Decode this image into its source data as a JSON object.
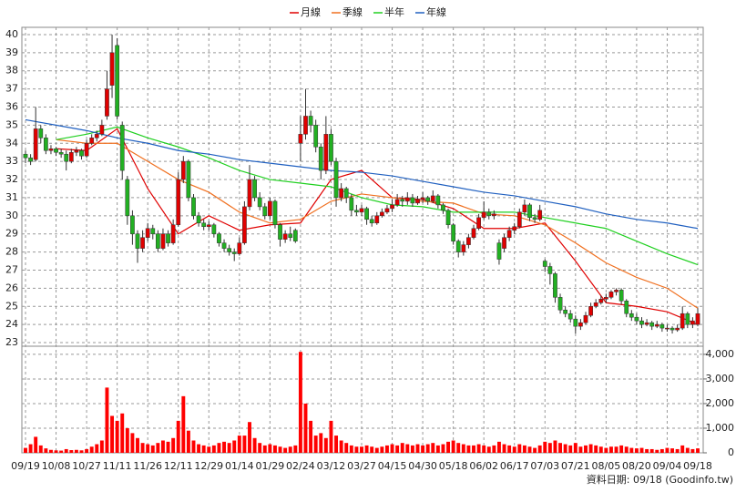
{
  "chart_data": {
    "type": "candlestick",
    "categories": [
      "09/19",
      null,
      null,
      null,
      null,
      null,
      "10/08",
      null,
      null,
      null,
      null,
      null,
      "10/27",
      null,
      null,
      null,
      null,
      null,
      "11/11",
      null,
      null,
      null,
      null,
      null,
      "11/26",
      null,
      null,
      null,
      null,
      null,
      "12/11",
      null,
      null,
      null,
      null,
      null,
      "12/29",
      null,
      null,
      null,
      null,
      null,
      "01/14",
      null,
      null,
      null,
      null,
      null,
      "01/29",
      null,
      null,
      null,
      null,
      null,
      "02/24",
      null,
      null,
      null,
      null,
      null,
      "03/12",
      null,
      null,
      null,
      null,
      null,
      "03/27",
      null,
      null,
      null,
      null,
      null,
      "04/15",
      null,
      null,
      null,
      null,
      null,
      "04/30",
      null,
      null,
      null,
      null,
      null,
      "05/18",
      null,
      null,
      null,
      null,
      null,
      "06/02",
      null,
      null,
      null,
      null,
      null,
      "06/17",
      null,
      null,
      null,
      null,
      null,
      "07/03",
      null,
      null,
      null,
      null,
      null,
      "07/21",
      null,
      null,
      null,
      null,
      null,
      "08/05",
      null,
      null,
      null,
      null,
      null,
      "08/20",
      null,
      null,
      null,
      null,
      null,
      "09/04",
      null,
      null,
      null,
      null,
      null,
      "09/18"
    ],
    "ohlc": [
      [
        33.4,
        33.6,
        32.9,
        33.2
      ],
      [
        33.2,
        33.4,
        32.8,
        33.0
      ],
      [
        33.1,
        36.0,
        33.0,
        34.8
      ],
      [
        34.8,
        35.0,
        34.0,
        34.3
      ],
      [
        34.3,
        34.5,
        33.4,
        33.6
      ],
      [
        33.6,
        33.9,
        33.4,
        33.7
      ],
      [
        33.7,
        33.8,
        33.3,
        33.5
      ],
      [
        33.5,
        33.7,
        33.2,
        33.4
      ],
      [
        33.4,
        33.6,
        32.5,
        33.0
      ],
      [
        33.0,
        33.7,
        32.9,
        33.5
      ],
      [
        33.5,
        33.8,
        33.3,
        33.6
      ],
      [
        33.6,
        33.7,
        33.1,
        33.3
      ],
      [
        33.3,
        34.2,
        33.2,
        34.0
      ],
      [
        34.0,
        34.5,
        33.9,
        34.3
      ],
      [
        34.3,
        34.7,
        34.1,
        34.5
      ],
      [
        34.5,
        35.3,
        34.4,
        35.0
      ],
      [
        35.5,
        38.0,
        35.3,
        37.0
      ],
      [
        37.2,
        40.0,
        36.5,
        39.0
      ],
      [
        39.4,
        39.8,
        35.3,
        35.5
      ],
      [
        35.0,
        35.2,
        32.0,
        32.5
      ],
      [
        32.0,
        32.2,
        29.5,
        30.0
      ],
      [
        30.0,
        30.3,
        28.4,
        29.0
      ],
      [
        29.0,
        29.2,
        27.4,
        28.2
      ],
      [
        28.2,
        29.2,
        28.0,
        28.8
      ],
      [
        28.8,
        29.6,
        28.6,
        29.3
      ],
      [
        29.3,
        29.5,
        28.7,
        29.0
      ],
      [
        29.0,
        29.2,
        28.0,
        28.2
      ],
      [
        28.2,
        29.3,
        28.1,
        29.0
      ],
      [
        29.0,
        29.2,
        28.3,
        28.5
      ],
      [
        28.5,
        29.8,
        28.4,
        29.5
      ],
      [
        29.5,
        32.4,
        29.4,
        32.0
      ],
      [
        32.0,
        33.3,
        31.8,
        33.0
      ],
      [
        33.0,
        33.1,
        30.8,
        31.0
      ],
      [
        31.0,
        31.2,
        29.8,
        30.0
      ],
      [
        30.0,
        30.2,
        29.4,
        29.6
      ],
      [
        29.6,
        29.8,
        29.2,
        29.4
      ],
      [
        29.4,
        29.7,
        29.2,
        29.5
      ],
      [
        29.5,
        29.6,
        28.8,
        29.0
      ],
      [
        29.0,
        29.1,
        28.3,
        28.5
      ],
      [
        28.5,
        28.7,
        28.0,
        28.2
      ],
      [
        28.2,
        28.4,
        27.8,
        28.0
      ],
      [
        28.0,
        28.2,
        27.5,
        27.9
      ],
      [
        27.9,
        28.8,
        27.8,
        28.5
      ],
      [
        28.5,
        30.8,
        28.4,
        30.5
      ],
      [
        30.5,
        32.8,
        30.3,
        32.0
      ],
      [
        32.0,
        32.2,
        30.8,
        31.0
      ],
      [
        31.0,
        31.3,
        30.3,
        30.5
      ],
      [
        30.5,
        30.7,
        29.8,
        30.0
      ],
      [
        30.0,
        31.0,
        29.8,
        30.8
      ],
      [
        30.8,
        30.9,
        29.3,
        29.5
      ],
      [
        29.5,
        29.6,
        28.3,
        28.7
      ],
      [
        28.7,
        29.2,
        28.5,
        29.0
      ],
      [
        29.0,
        29.4,
        28.6,
        28.8
      ],
      [
        29.2,
        29.3,
        28.5,
        28.6
      ],
      [
        34.0,
        35.5,
        33.0,
        34.5
      ],
      [
        34.5,
        37.0,
        34.2,
        35.5
      ],
      [
        35.5,
        35.8,
        34.6,
        35.0
      ],
      [
        35.0,
        35.3,
        33.5,
        33.8
      ],
      [
        33.8,
        34.0,
        32.0,
        32.5
      ],
      [
        32.5,
        35.5,
        32.3,
        34.5
      ],
      [
        34.5,
        34.8,
        32.8,
        33.0
      ],
      [
        33.0,
        33.2,
        30.5,
        31.0
      ],
      [
        31.0,
        31.8,
        30.8,
        31.5
      ],
      [
        31.5,
        31.6,
        30.7,
        31.0
      ],
      [
        31.0,
        31.2,
        30.0,
        30.3
      ],
      [
        30.3,
        30.6,
        30.0,
        30.2
      ],
      [
        30.2,
        30.6,
        30.0,
        30.4
      ],
      [
        30.4,
        30.5,
        29.5,
        29.8
      ],
      [
        29.8,
        30.0,
        29.4,
        29.6
      ],
      [
        29.6,
        30.2,
        29.5,
        30.0
      ],
      [
        30.0,
        30.4,
        29.9,
        30.2
      ],
      [
        30.2,
        30.6,
        30.1,
        30.4
      ],
      [
        30.4,
        30.9,
        30.2,
        30.6
      ],
      [
        30.6,
        31.2,
        30.5,
        30.9
      ],
      [
        30.9,
        31.1,
        30.5,
        30.8
      ],
      [
        30.8,
        31.3,
        30.6,
        31.0
      ],
      [
        31.0,
        31.2,
        30.5,
        30.7
      ],
      [
        30.7,
        31.1,
        30.6,
        30.9
      ],
      [
        30.9,
        31.3,
        30.7,
        31.0
      ],
      [
        31.0,
        31.1,
        30.6,
        30.8
      ],
      [
        30.8,
        31.4,
        30.7,
        31.1
      ],
      [
        31.1,
        31.2,
        30.4,
        30.6
      ],
      [
        30.6,
        30.7,
        30.1,
        30.3
      ],
      [
        30.3,
        30.4,
        29.3,
        29.5
      ],
      [
        29.5,
        29.6,
        28.4,
        28.6
      ],
      [
        28.6,
        28.7,
        27.7,
        28.0
      ],
      [
        28.0,
        28.6,
        27.8,
        28.4
      ],
      [
        28.4,
        29.0,
        28.2,
        28.8
      ],
      [
        28.8,
        29.5,
        28.7,
        29.3
      ],
      [
        29.3,
        30.1,
        29.2,
        29.9
      ],
      [
        29.9,
        30.8,
        29.8,
        30.2
      ],
      [
        30.2,
        30.4,
        29.8,
        30.0
      ],
      [
        30.0,
        30.3,
        29.8,
        30.1
      ],
      [
        28.5,
        28.7,
        27.3,
        27.6
      ],
      [
        28.2,
        29.0,
        28.0,
        28.8
      ],
      [
        28.8,
        29.4,
        28.6,
        29.2
      ],
      [
        29.2,
        29.6,
        29.0,
        29.4
      ],
      [
        29.4,
        30.4,
        29.3,
        30.2
      ],
      [
        30.2,
        30.9,
        30.0,
        30.6
      ],
      [
        30.6,
        30.7,
        29.7,
        29.9
      ],
      [
        29.9,
        30.1,
        29.6,
        29.8
      ],
      [
        29.8,
        30.6,
        29.7,
        30.3
      ],
      [
        27.5,
        27.6,
        26.9,
        27.2
      ],
      [
        27.2,
        27.4,
        26.2,
        26.8
      ],
      [
        26.8,
        26.9,
        25.2,
        25.5
      ],
      [
        25.5,
        25.7,
        24.6,
        24.8
      ],
      [
        24.8,
        25.0,
        24.4,
        24.6
      ],
      [
        24.6,
        24.8,
        24.1,
        24.3
      ],
      [
        24.3,
        24.5,
        23.5,
        23.9
      ],
      [
        23.9,
        24.3,
        23.7,
        24.1
      ],
      [
        24.1,
        24.7,
        24.0,
        24.5
      ],
      [
        24.5,
        25.2,
        24.4,
        25.0
      ],
      [
        25.0,
        25.4,
        24.9,
        25.2
      ],
      [
        25.2,
        25.6,
        25.1,
        25.4
      ],
      [
        25.4,
        25.7,
        25.2,
        25.5
      ],
      [
        25.5,
        25.9,
        25.4,
        25.8
      ],
      [
        25.8,
        26.0,
        25.6,
        25.9
      ],
      [
        25.9,
        26.0,
        25.1,
        25.3
      ],
      [
        25.3,
        25.4,
        24.4,
        24.6
      ],
      [
        24.6,
        24.8,
        24.2,
        24.4
      ],
      [
        24.4,
        24.6,
        24.0,
        24.2
      ],
      [
        24.2,
        24.4,
        23.8,
        24.0
      ],
      [
        24.0,
        24.3,
        23.9,
        24.1
      ],
      [
        24.1,
        24.2,
        23.7,
        23.9
      ],
      [
        23.9,
        24.2,
        23.8,
        24.0
      ],
      [
        24.0,
        24.1,
        23.6,
        23.8
      ],
      [
        23.8,
        24.0,
        23.6,
        23.8
      ],
      [
        23.8,
        23.9,
        23.5,
        23.7
      ],
      [
        23.7,
        24.0,
        23.6,
        23.8
      ],
      [
        23.8,
        25.0,
        23.7,
        24.6
      ],
      [
        24.6,
        24.7,
        23.8,
        24.0
      ],
      [
        24.0,
        24.4,
        23.8,
        24.2
      ],
      [
        24.0,
        24.9,
        23.9,
        24.6
      ]
    ],
    "up_color": "#e00000",
    "down_color": "#22b022",
    "ylim": [
      22.8,
      40.4
    ],
    "yticks": [
      23,
      24,
      25,
      26,
      27,
      28,
      29,
      30,
      31,
      32,
      33,
      34,
      35,
      36,
      37,
      38,
      39,
      40
    ],
    "lines": [
      {
        "name": "月線",
        "color": "#e00000",
        "x": [
          6,
          12,
          18,
          24,
          30,
          36,
          42,
          48,
          54,
          60,
          66,
          72,
          78,
          84,
          90,
          96,
          102,
          108,
          114,
          120,
          126,
          132
        ],
        "values": [
          33.7,
          33.6,
          34.8,
          31.5,
          29.0,
          30.0,
          29.2,
          29.5,
          29.6,
          32.0,
          32.5,
          31.0,
          30.9,
          30.4,
          29.3,
          29.3,
          29.6,
          27.5,
          25.2,
          25.0,
          24.7,
          24.0
        ]
      },
      {
        "name": "季線",
        "color": "#f07020",
        "x": [
          6,
          12,
          18,
          24,
          30,
          36,
          42,
          48,
          54,
          60,
          66,
          72,
          78,
          84,
          90,
          96,
          102,
          108,
          114,
          120,
          126,
          132
        ],
        "values": [
          34.2,
          34.0,
          34.0,
          33.0,
          32.0,
          31.3,
          30.2,
          29.6,
          29.8,
          30.8,
          31.2,
          31.0,
          30.8,
          30.7,
          30.1,
          30.0,
          29.5,
          28.5,
          27.4,
          26.6,
          26.0,
          24.9
        ]
      },
      {
        "name": "半年",
        "color": "#20d020",
        "x": [
          6,
          12,
          18,
          24,
          30,
          36,
          42,
          48,
          54,
          60,
          66,
          72,
          78,
          84,
          90,
          96,
          102,
          108,
          114,
          120,
          126,
          132
        ],
        "values": [
          34.2,
          34.5,
          34.9,
          34.3,
          33.8,
          33.2,
          32.5,
          32.0,
          31.8,
          31.6,
          31.0,
          30.6,
          30.5,
          30.2,
          30.2,
          30.2,
          29.9,
          29.6,
          29.3,
          28.6,
          27.9,
          27.3
        ]
      },
      {
        "name": "年線",
        "color": "#2060c0",
        "x": [
          0,
          6,
          12,
          18,
          24,
          30,
          36,
          42,
          48,
          54,
          60,
          66,
          72,
          78,
          84,
          90,
          96,
          102,
          108,
          114,
          120,
          126,
          132
        ],
        "values": [
          35.3,
          35.0,
          34.7,
          34.3,
          34.0,
          33.6,
          33.4,
          33.1,
          32.9,
          32.7,
          32.5,
          32.4,
          32.2,
          31.9,
          31.6,
          31.3,
          31.1,
          30.8,
          30.5,
          30.1,
          29.8,
          29.6,
          29.3
        ]
      }
    ],
    "volume": {
      "color": "#ff0000",
      "ylim": [
        0,
        4330
      ],
      "yticks": [
        0,
        {
          "value": 1000,
          "label": "1,000"
        },
        {
          "value": 2000,
          "label": "2,000"
        },
        {
          "value": 3000,
          "label": "3,000"
        },
        {
          "value": 4000,
          "label": "4,000"
        }
      ],
      "values": [
        200,
        350,
        650,
        300,
        180,
        120,
        100,
        90,
        150,
        110,
        120,
        100,
        150,
        250,
        350,
        500,
        2650,
        1500,
        1300,
        1600,
        1000,
        800,
        600,
        400,
        350,
        300,
        400,
        500,
        450,
        600,
        1300,
        2300,
        900,
        500,
        350,
        300,
        250,
        300,
        400,
        450,
        400,
        500,
        700,
        700,
        1250,
        600,
        400,
        300,
        350,
        300,
        250,
        200,
        250,
        300,
        4100,
        2000,
        1300,
        700,
        800,
        600,
        1300,
        700,
        500,
        400,
        300,
        250,
        250,
        300,
        250,
        200,
        250,
        300,
        350,
        300,
        400,
        350,
        300,
        350,
        300,
        350,
        400,
        300,
        350,
        450,
        500,
        400,
        350,
        300,
        300,
        350,
        300,
        250,
        300,
        450,
        350,
        300,
        250,
        350,
        300,
        250,
        200,
        300,
        450,
        400,
        500,
        400,
        350,
        300,
        400,
        250,
        300,
        350,
        300,
        250,
        200,
        250,
        250,
        300,
        250,
        200,
        180,
        200,
        150,
        150,
        120,
        150,
        200,
        180,
        150,
        300,
        200,
        150,
        180
      ]
    },
    "source_note": "資料日期: 09/18  (Goodinfo.tw)"
  }
}
